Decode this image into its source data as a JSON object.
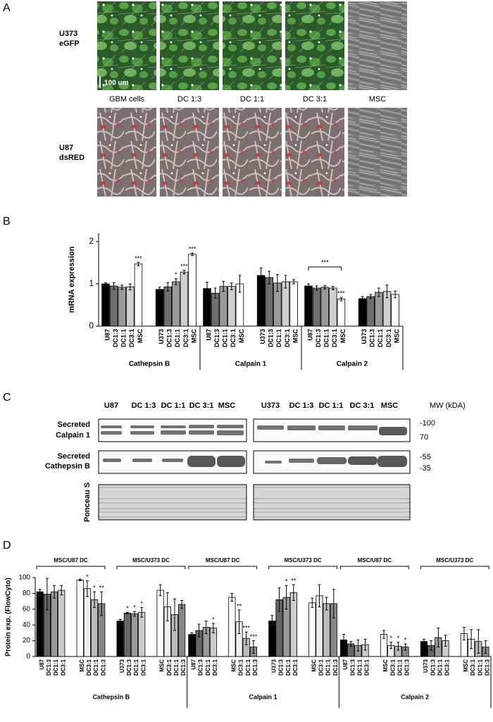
{
  "panel_a": {
    "label": "A",
    "row_labels": [
      [
        "U373",
        "eGFP"
      ],
      [
        "U87",
        "dsRED"
      ]
    ],
    "columns": [
      "GBM cells",
      "DC 1:3",
      "DC 1:1",
      "DC 3:1",
      "MSC"
    ],
    "scale_bar": "100 um"
  },
  "chart_data": [
    {
      "type": "bar",
      "panel_label": "B",
      "y_label": "mRNA expression",
      "ylim": [
        0,
        2.2
      ],
      "yticks": [
        0,
        1,
        2
      ],
      "colors": [
        "#000000",
        "#6e6e6e",
        "#9a9a9a",
        "#cfcfcf",
        "#ffffff",
        "#000000",
        "#6e6e6e",
        "#9a9a9a",
        "#cfcfcf",
        "#ffffff"
      ],
      "groups": [
        {
          "name": "Cathepsin B",
          "categories": [
            "U87",
            "DC1:3",
            "DC1:1",
            "DC3:1",
            "MSC",
            "U373",
            "DC1:3",
            "DC1:1",
            "DC3:1",
            "MSC"
          ],
          "values": [
            1.0,
            0.95,
            0.92,
            0.93,
            1.47,
            0.87,
            0.93,
            1.05,
            1.28,
            1.7
          ],
          "errors": [
            0.03,
            0.08,
            0.05,
            0.07,
            0.04,
            0.05,
            0.1,
            0.07,
            0.04,
            0.03
          ],
          "significance": [
            null,
            null,
            null,
            null,
            "***",
            null,
            null,
            "*",
            "***",
            "***"
          ]
        },
        {
          "name": "Calpain 1",
          "categories": [
            "U87",
            "DC1:3",
            "DC1:1",
            "DC3:1",
            "MSC",
            "U373",
            "DC1:3",
            "DC1:1",
            "DC3:1",
            "MSC"
          ],
          "values": [
            0.89,
            0.78,
            0.94,
            0.94,
            1.0,
            1.2,
            1.15,
            1.02,
            1.05,
            1.05
          ],
          "errors": [
            0.15,
            0.12,
            0.12,
            0.08,
            0.2,
            0.18,
            0.15,
            0.2,
            0.15,
            0.05
          ],
          "significance": [
            null,
            null,
            null,
            null,
            null,
            null,
            null,
            null,
            null,
            null
          ]
        },
        {
          "name": "Calpain 2",
          "categories": [
            "U87",
            "DC1:3",
            "DC1:1",
            "DC3:1",
            "MSC",
            "U373",
            "DC1:3",
            "DC1:1",
            "DC3:1",
            "MSC"
          ],
          "values": [
            0.95,
            0.9,
            0.92,
            0.9,
            0.64,
            0.65,
            0.7,
            0.8,
            0.82,
            0.75
          ],
          "errors": [
            0.05,
            0.05,
            0.04,
            0.04,
            0.04,
            0.05,
            0.05,
            0.1,
            0.15,
            0.08
          ],
          "significance": [
            null,
            null,
            null,
            null,
            "***",
            null,
            null,
            null,
            null,
            null
          ],
          "bracket": "***"
        }
      ]
    },
    {
      "type": "bar",
      "panel_label": "D",
      "y_label": "Protein exp. (FlowCyto)",
      "ylim": [
        0,
        100
      ],
      "yticks": [
        0,
        20,
        40,
        60,
        80,
        100
      ],
      "colors": [
        "#000000",
        "#666666",
        "#999999",
        "#cccccc",
        "#ffffff",
        "#eeeeee",
        "#bbbbbb",
        "#888888",
        "#000000",
        "#666666",
        "#999999",
        "#cccccc",
        "#ffffff",
        "#eeeeee",
        "#bbbbbb",
        "#888888"
      ],
      "groups": [
        {
          "name": "Cathepsin B",
          "subgroups": [
            "MSC/U87 DC",
            "MSC/U373 DC"
          ],
          "categories": [
            "U87",
            "DC1:3",
            "DC1:1",
            "DC3:1",
            "MSC",
            "DC3:1",
            "DC1:1",
            "DC1:3",
            "U373",
            "DC1:3",
            "DC1:1",
            "DC3:1",
            "MSC",
            "DC3:1",
            "DC1:1",
            "DC1:3"
          ],
          "values": [
            82,
            79,
            82,
            84,
            97,
            86,
            72,
            67,
            45,
            55,
            54,
            56,
            84,
            63,
            53,
            66
          ],
          "errors": [
            3,
            20,
            8,
            6,
            1,
            10,
            10,
            15,
            2,
            1,
            3,
            6,
            7,
            18,
            20,
            5
          ],
          "significance": [
            null,
            null,
            null,
            null,
            null,
            "*",
            "*",
            "**",
            null,
            "*",
            "*",
            "*",
            null,
            null,
            null,
            null
          ]
        },
        {
          "name": "Calpain 1",
          "subgroups": [
            "MSC/U87 DC",
            "MSC/U373 DC"
          ],
          "categories": [
            "U87",
            "DC1:3",
            "DC1:1",
            "DC3:1",
            "MSC",
            "DC3:1",
            "DC1:1",
            "DC1:3",
            "U373",
            "DC1:3",
            "DC1:1",
            "DC3:1",
            "MSC",
            "DC3:1",
            "DC1:1",
            "DC1:3"
          ],
          "values": [
            28,
            33,
            37,
            36,
            75,
            44,
            23,
            12,
            45,
            72,
            75,
            81,
            68,
            77,
            67,
            67
          ],
          "errors": [
            2,
            8,
            8,
            6,
            5,
            15,
            8,
            8,
            7,
            15,
            15,
            10,
            6,
            14,
            8,
            18
          ],
          "significance": [
            null,
            null,
            null,
            "*",
            null,
            "**",
            "***",
            "***",
            null,
            null,
            "*",
            "**",
            null,
            null,
            null,
            null
          ]
        },
        {
          "name": "Calpain 2",
          "subgroups": [
            "MSC/U87 DC",
            "MSC/U373 DC"
          ],
          "categories": [
            "U87",
            "DC1:3",
            "DC1:1",
            "DC3:1",
            "MSC",
            "DC3:1",
            "DC1:1",
            "DC1:3",
            "U373",
            "DC1:3",
            "DC1:1",
            "DC3:1",
            "MSC",
            "DC3:1",
            "DC1:1",
            "DC1:3"
          ],
          "values": [
            21,
            16,
            14,
            15,
            28,
            14,
            13,
            12,
            19,
            14,
            24,
            20,
            29,
            22,
            19,
            12
          ],
          "errors": [
            7,
            3,
            7,
            7,
            5,
            4,
            5,
            4,
            3,
            6,
            12,
            7,
            8,
            12,
            15,
            8
          ],
          "significance": [
            null,
            null,
            null,
            null,
            null,
            "*",
            "*",
            "*",
            null,
            null,
            null,
            null,
            null,
            null,
            null,
            null
          ]
        }
      ]
    }
  ],
  "panel_c": {
    "label": "C",
    "left_columns": [
      "U87",
      "DC 1:3",
      "DC 1:1",
      "DC 3:1",
      "MSC"
    ],
    "right_columns": [
      "U373",
      "DC 1:3",
      "DC 1:1",
      "DC 3:1",
      "MSC"
    ],
    "mw_label": "MW (kDA)",
    "rows": [
      {
        "label": [
          "Secreted",
          "Calpain 1"
        ],
        "markers": [
          "-100",
          "70"
        ]
      },
      {
        "label": [
          "Secreted",
          "Cathepsin B"
        ],
        "markers": [
          "-55",
          "-35"
        ]
      },
      {
        "label": [
          "Ponceau S"
        ]
      }
    ]
  }
}
